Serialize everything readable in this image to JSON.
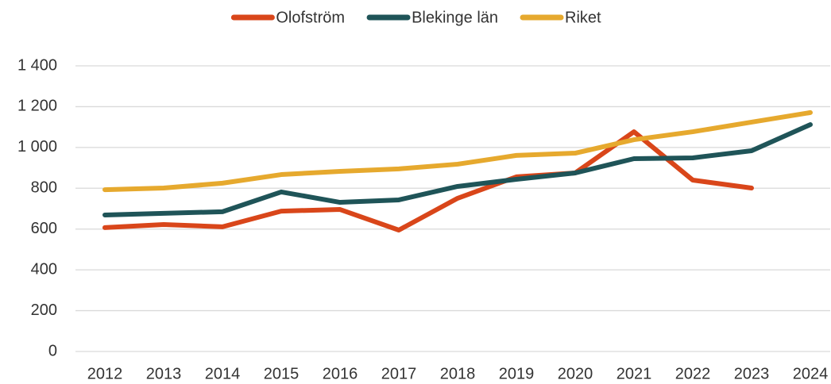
{
  "chart_data": {
    "type": "line",
    "categories": [
      "2012",
      "2013",
      "2014",
      "2015",
      "2016",
      "2017",
      "2018",
      "2019",
      "2020",
      "2021",
      "2022",
      "2023",
      "2024"
    ],
    "series": [
      {
        "name": "Olofström",
        "color": "#d9461a",
        "values": [
          607,
          622,
          611,
          688,
          696,
          595,
          751,
          856,
          875,
          1077,
          840,
          801,
          null
        ]
      },
      {
        "name": "Blekinge län",
        "color": "#1f5458",
        "values": [
          669,
          677,
          685,
          782,
          731,
          743,
          809,
          844,
          875,
          945,
          949,
          984,
          1112
        ]
      },
      {
        "name": "Riket",
        "color": "#e6a92e",
        "values": [
          793,
          801,
          825,
          867,
          883,
          895,
          918,
          961,
          972,
          1038,
          1077,
          1124,
          1171
        ]
      }
    ],
    "ylim": [
      0,
      1400
    ],
    "yticks": [
      0,
      200,
      400,
      600,
      800,
      {
        "value": 1000,
        "label": "1 000"
      },
      {
        "value": 1200,
        "label": "1 200"
      },
      {
        "value": 1400,
        "label": "1 400"
      }
    ],
    "grid": true,
    "legend": "top"
  }
}
